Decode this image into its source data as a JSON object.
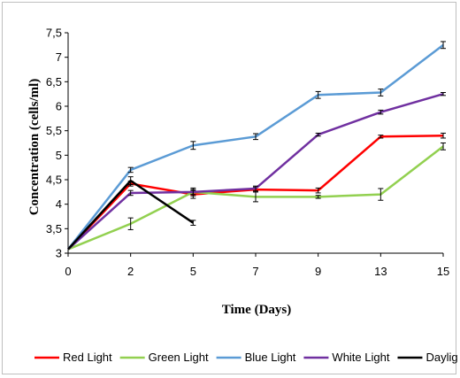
{
  "chart_data": {
    "type": "line",
    "title": "",
    "xlabel": "Time (Days)",
    "ylabel": "Concentration (cells/ml)",
    "categories": [
      "0",
      "2",
      "5",
      "7",
      "9",
      "13",
      "15"
    ],
    "y_ticks": [
      "3",
      "3,5",
      "4",
      "4,5",
      "5",
      "5,5",
      "6",
      "6,5",
      "7",
      "7,5"
    ],
    "ylim": [
      3,
      7.5
    ],
    "grid": false,
    "legend_position": "bottom",
    "series": [
      {
        "name": "Red Light",
        "color": "#ff0000",
        "values": [
          3.08,
          4.42,
          4.2,
          4.3,
          4.28,
          5.38,
          5.4
        ],
        "errors": [
          0,
          0.05,
          0.08,
          0.05,
          0.05,
          0.03,
          0.05
        ]
      },
      {
        "name": "Green Light",
        "color": "#92d050",
        "values": [
          3.08,
          3.6,
          4.25,
          4.15,
          4.15,
          4.2,
          5.18
        ],
        "errors": [
          0,
          0.12,
          0.05,
          0.1,
          0.03,
          0.12,
          0.07
        ]
      },
      {
        "name": "Blue Light",
        "color": "#5b9bd5",
        "values": [
          3.08,
          4.7,
          5.2,
          5.38,
          6.23,
          6.28,
          7.25
        ],
        "errors": [
          0,
          0.05,
          0.08,
          0.06,
          0.07,
          0.07,
          0.07
        ]
      },
      {
        "name": "White Light",
        "color": "#7030a0",
        "values": [
          3.08,
          4.23,
          4.25,
          4.32,
          5.42,
          5.88,
          6.25
        ],
        "errors": [
          0,
          0.05,
          0.08,
          0.05,
          0.03,
          0.04,
          0.03
        ]
      },
      {
        "name": "Daylight",
        "color": "#000000",
        "values": [
          3.08,
          4.48,
          3.62,
          null,
          null,
          null,
          null
        ],
        "errors": [
          0,
          0.08,
          0.05,
          null,
          null,
          null,
          null
        ]
      }
    ]
  }
}
